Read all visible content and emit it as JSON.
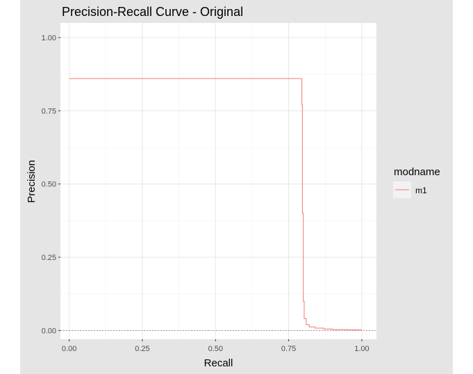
{
  "chart_data": {
    "type": "line",
    "title": "Precision-Recall Curve - Original",
    "xlabel": "Recall",
    "ylabel": "Precision",
    "xlim": [
      -0.03,
      1.05
    ],
    "ylim": [
      -0.03,
      1.05
    ],
    "x_ticks": [
      "0.00",
      "0.25",
      "0.50",
      "0.75",
      "1.00"
    ],
    "y_ticks": [
      "0.00",
      "0.25",
      "0.50",
      "0.75",
      "1.00"
    ],
    "x_tick_values": [
      0,
      0.25,
      0.5,
      0.75,
      1.0
    ],
    "y_tick_values": [
      0,
      0.25,
      0.5,
      0.75,
      1.0
    ],
    "grid": true,
    "baseline": 0.0,
    "legend": {
      "title": "modname",
      "position": "right",
      "entries": [
        "m1"
      ]
    },
    "series": [
      {
        "name": "m1",
        "color": "#F8766D",
        "x": [
          0.0,
          0.795,
          0.795,
          0.797,
          0.797,
          0.8,
          0.8,
          0.803,
          0.803,
          0.81,
          0.81,
          0.82,
          0.82,
          0.84,
          0.84,
          0.87,
          0.87,
          0.9,
          0.9,
          0.95,
          0.95,
          1.0
        ],
        "y": [
          0.86,
          0.86,
          0.77,
          0.77,
          0.4,
          0.4,
          0.1,
          0.1,
          0.04,
          0.04,
          0.02,
          0.02,
          0.012,
          0.012,
          0.008,
          0.008,
          0.005,
          0.005,
          0.003,
          0.003,
          0.002,
          0.002
        ]
      }
    ]
  }
}
